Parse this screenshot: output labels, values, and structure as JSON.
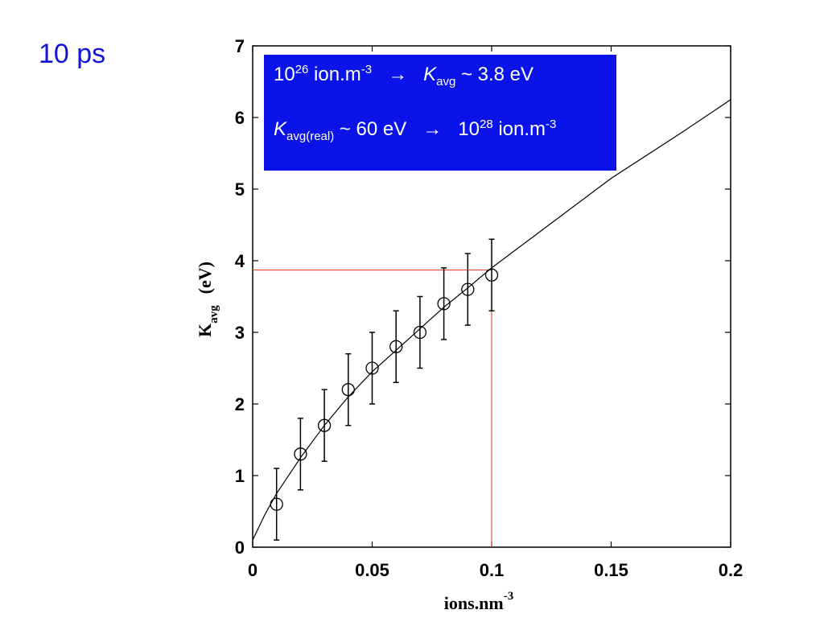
{
  "slide": {
    "title": "10 ps"
  },
  "annotation": {
    "line1": {
      "base": "10",
      "exp": "26",
      "unit": " ion.m",
      "unit_exp": "-3",
      "arrow": "→",
      "k": "K",
      "k_sub": "avg",
      "value": " ~ 3.8  eV"
    },
    "line2": {
      "k": "K",
      "k_sub": "avg(real)",
      "value": " ~ 60 eV",
      "arrow": "→",
      "base": "10",
      "exp": "28",
      "unit": " ion.m",
      "unit_exp": "-3"
    },
    "background_color": "#0a14e8"
  },
  "chart_data": {
    "type": "scatter",
    "xlabel": "ions.nm",
    "xlabel_exp": "-3",
    "ylabel": "K",
    "ylabel_sub": "avg",
    "ylabel_unit": "(eV)",
    "xlim": [
      0,
      0.2
    ],
    "ylim": [
      0,
      7
    ],
    "xticks": [
      0,
      0.05,
      0.1,
      0.15,
      0.2
    ],
    "xtick_labels": [
      "0",
      "0.05",
      "0.1",
      "0.15",
      "0.2"
    ],
    "yticks": [
      0,
      1,
      2,
      3,
      4,
      5,
      6,
      7
    ],
    "ytick_labels": [
      "0",
      "1",
      "2",
      "3",
      "4",
      "5",
      "6",
      "7"
    ],
    "points": [
      {
        "x": 0.01,
        "y": 0.6,
        "err": 0.5
      },
      {
        "x": 0.02,
        "y": 1.3,
        "err": 0.5
      },
      {
        "x": 0.03,
        "y": 1.7,
        "err": 0.5
      },
      {
        "x": 0.04,
        "y": 2.2,
        "err": 0.5
      },
      {
        "x": 0.05,
        "y": 2.5,
        "err": 0.5
      },
      {
        "x": 0.06,
        "y": 2.8,
        "err": 0.5
      },
      {
        "x": 0.07,
        "y": 3.0,
        "err": 0.5
      },
      {
        "x": 0.08,
        "y": 3.4,
        "err": 0.5
      },
      {
        "x": 0.09,
        "y": 3.6,
        "err": 0.5
      },
      {
        "x": 0.1,
        "y": 3.8,
        "err": 0.5
      }
    ],
    "fit_line": [
      {
        "x": 0.0,
        "y": 0.1
      },
      {
        "x": 0.005,
        "y": 0.45
      },
      {
        "x": 0.01,
        "y": 0.75
      },
      {
        "x": 0.02,
        "y": 1.25
      },
      {
        "x": 0.03,
        "y": 1.7
      },
      {
        "x": 0.04,
        "y": 2.1
      },
      {
        "x": 0.05,
        "y": 2.45
      },
      {
        "x": 0.06,
        "y": 2.75
      },
      {
        "x": 0.07,
        "y": 3.05
      },
      {
        "x": 0.08,
        "y": 3.35
      },
      {
        "x": 0.09,
        "y": 3.62
      },
      {
        "x": 0.1,
        "y": 3.9
      },
      {
        "x": 0.12,
        "y": 4.4
      },
      {
        "x": 0.15,
        "y": 5.15
      },
      {
        "x": 0.18,
        "y": 5.8
      },
      {
        "x": 0.2,
        "y": 6.25
      }
    ],
    "reference_point": {
      "x": 0.1,
      "y": 3.87
    },
    "colors": {
      "marks": "#000000",
      "reference": "#e0301e"
    },
    "grid": false
  }
}
